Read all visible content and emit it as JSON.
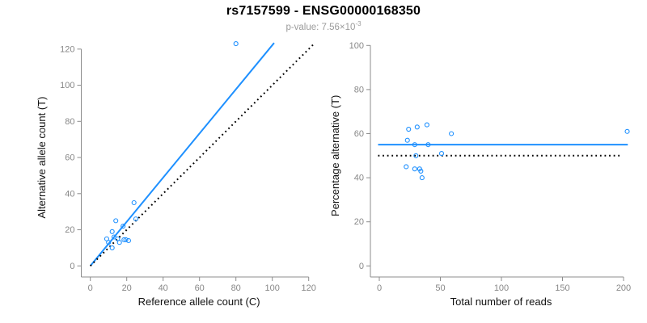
{
  "header": {
    "title": "rs7157599 - ENSG00000168350",
    "subtitle_prefix": "p-value: ",
    "p_value_mantissa": "7.56×10",
    "p_value_exponent": "-3"
  },
  "colors": {
    "accent_blue": "#1E90FF",
    "dotted_black": "#000000",
    "axis_gray": "#8c8c8c",
    "tick_label_gray": "#878787",
    "axis_title_black": "#111111",
    "subtitle_gray": "#9b9b9b",
    "background": "#ffffff"
  },
  "chart_data": [
    {
      "type": "scatter",
      "name": "allele-count-scatter",
      "xlabel": "Reference allele count (C)",
      "ylabel": "Alternative allele count (T)",
      "xticks": [
        0,
        20,
        40,
        60,
        80,
        100,
        120
      ],
      "yticks": [
        0,
        20,
        40,
        60,
        80,
        100,
        120
      ],
      "xlim": [
        0,
        123
      ],
      "ylim": [
        0,
        123
      ],
      "grid": false,
      "legend": "none",
      "points": [
        [
          80,
          123
        ],
        [
          24,
          35
        ],
        [
          25,
          26
        ],
        [
          14,
          25
        ],
        [
          18,
          22
        ],
        [
          12,
          19
        ],
        [
          9,
          15
        ],
        [
          13,
          16
        ],
        [
          15,
          15
        ],
        [
          10,
          13
        ],
        [
          16,
          13
        ],
        [
          18.5,
          14.5
        ],
        [
          19.5,
          14.5
        ],
        [
          21,
          14
        ],
        [
          12,
          10
        ]
      ],
      "lines": [
        {
          "name": "fitted-allelic-ratio-line",
          "style": "solid",
          "color": "#1E90FF",
          "width": 2,
          "points": [
            [
              0,
              0
            ],
            [
              101,
              123.4
            ]
          ]
        },
        {
          "name": "identity-line",
          "style": "dotted",
          "color": "#000000",
          "width": 2,
          "points": [
            [
              0,
              0
            ],
            [
              122.5,
              122.5
            ]
          ]
        }
      ]
    },
    {
      "type": "scatter",
      "name": "percentage-scatter",
      "xlabel": "Total number of reads",
      "ylabel": "Percentage alternative (T)",
      "xticks": [
        0,
        50,
        100,
        150,
        200
      ],
      "yticks": [
        0,
        20,
        40,
        60,
        80,
        100
      ],
      "xlim": [
        0,
        204
      ],
      "ylim": [
        0,
        100
      ],
      "grid": false,
      "legend": "none",
      "points": [
        [
          203,
          61
        ],
        [
          59,
          60
        ],
        [
          51,
          51
        ],
        [
          39,
          64
        ],
        [
          40,
          55
        ],
        [
          31,
          63
        ],
        [
          24,
          62
        ],
        [
          29,
          55
        ],
        [
          30,
          50
        ],
        [
          23,
          57
        ],
        [
          29,
          44
        ],
        [
          33,
          44
        ],
        [
          34,
          43
        ],
        [
          35,
          40
        ],
        [
          22,
          45
        ]
      ],
      "lines": [
        {
          "name": "mean-percentage-line",
          "style": "solid",
          "color": "#1E90FF",
          "width": 2,
          "points": [
            [
              -1,
              55
            ],
            [
              203.5,
              55
            ]
          ]
        },
        {
          "name": "expected-50-percent-line",
          "style": "dotted",
          "color": "#000000",
          "width": 2,
          "points": [
            [
              -1,
              50
            ],
            [
              198,
              50
            ]
          ]
        }
      ]
    }
  ]
}
